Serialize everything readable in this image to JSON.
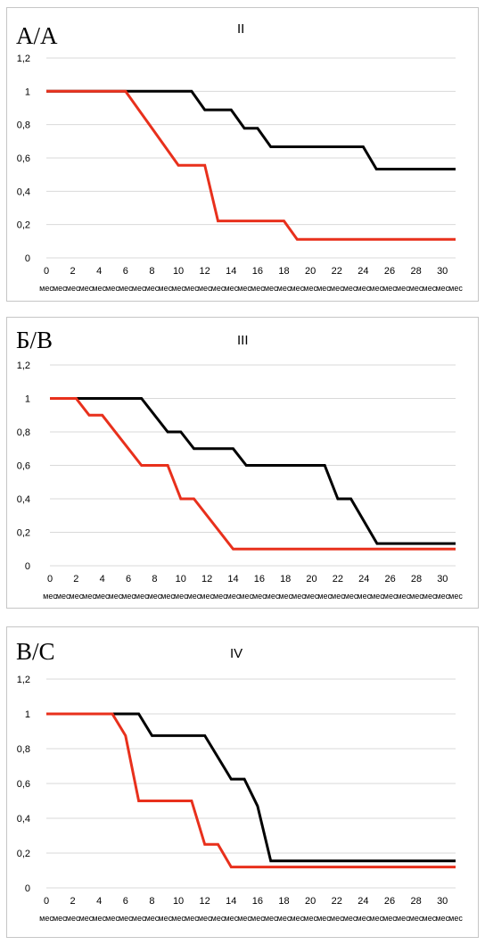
{
  "chart_data": [
    {
      "type": "line",
      "corner_label": "A/A",
      "title": "II",
      "ylim": [
        0,
        1.2
      ],
      "yticks": [
        "0",
        "0,2",
        "0,4",
        "0,6",
        "0,8",
        "1",
        "1,2"
      ],
      "xticks": [
        "0",
        "2",
        "4",
        "6",
        "8",
        "10",
        "12",
        "14",
        "16",
        "18",
        "20",
        "22",
        "24",
        "26",
        "28",
        "30"
      ],
      "xunit": "мес",
      "grid": true,
      "series": [
        {
          "color": "#000000",
          "points": [
            [
              0,
              1
            ],
            [
              11,
              1
            ],
            [
              12,
              0.889
            ],
            [
              14,
              0.889
            ],
            [
              15,
              0.778
            ],
            [
              16,
              0.778
            ],
            [
              17,
              0.667
            ],
            [
              24,
              0.667
            ],
            [
              25,
              0.533
            ],
            [
              31,
              0.533
            ]
          ]
        },
        {
          "color": "#e8301c",
          "points": [
            [
              0,
              1
            ],
            [
              6,
              1
            ],
            [
              8,
              0.778
            ],
            [
              10,
              0.556
            ],
            [
              12,
              0.556
            ],
            [
              13,
              0.222
            ],
            [
              18,
              0.222
            ],
            [
              19,
              0.111
            ],
            [
              31,
              0.111
            ]
          ]
        }
      ]
    },
    {
      "type": "line",
      "corner_label": "Б/В",
      "title": "III",
      "ylim": [
        0,
        1.2
      ],
      "yticks": [
        "0",
        "0,2",
        "0,4",
        "0,6",
        "0,8",
        "1",
        "1,2"
      ],
      "xticks": [
        "0",
        "2",
        "4",
        "6",
        "8",
        "10",
        "12",
        "14",
        "16",
        "18",
        "20",
        "22",
        "24",
        "26",
        "28",
        "30"
      ],
      "xunit": "мес",
      "grid": true,
      "series": [
        {
          "color": "#000000",
          "points": [
            [
              0,
              1
            ],
            [
              7,
              1
            ],
            [
              9,
              0.8
            ],
            [
              10,
              0.8
            ],
            [
              11,
              0.7
            ],
            [
              14,
              0.7
            ],
            [
              15,
              0.6
            ],
            [
              21,
              0.6
            ],
            [
              22,
              0.4
            ],
            [
              23,
              0.4
            ],
            [
              25,
              0.133
            ],
            [
              31,
              0.133
            ]
          ]
        },
        {
          "color": "#e8301c",
          "points": [
            [
              0,
              1
            ],
            [
              2,
              1
            ],
            [
              3,
              0.9
            ],
            [
              4,
              0.9
            ],
            [
              7,
              0.6
            ],
            [
              9,
              0.6
            ],
            [
              10,
              0.4
            ],
            [
              11,
              0.4
            ],
            [
              14,
              0.1
            ],
            [
              31,
              0.1
            ]
          ]
        }
      ]
    },
    {
      "type": "line",
      "corner_label": "B/C",
      "title": "IV",
      "ylim": [
        0,
        1.2
      ],
      "yticks": [
        "0",
        "0,2",
        "0,4",
        "0,6",
        "0,8",
        "1",
        "1,2"
      ],
      "xticks": [
        "0",
        "2",
        "4",
        "6",
        "8",
        "10",
        "12",
        "14",
        "16",
        "18",
        "20",
        "22",
        "24",
        "26",
        "28",
        "30"
      ],
      "xunit": "мес",
      "grid": true,
      "series": [
        {
          "color": "#000000",
          "points": [
            [
              0,
              1
            ],
            [
              7,
              1
            ],
            [
              8,
              0.875
            ],
            [
              12,
              0.875
            ],
            [
              14,
              0.625
            ],
            [
              15,
              0.625
            ],
            [
              16,
              0.47
            ],
            [
              17,
              0.155
            ],
            [
              31,
              0.155
            ]
          ]
        },
        {
          "color": "#e8301c",
          "points": [
            [
              0,
              1
            ],
            [
              5,
              1
            ],
            [
              6,
              0.875
            ],
            [
              7,
              0.5
            ],
            [
              11,
              0.5
            ],
            [
              12,
              0.25
            ],
            [
              13,
              0.25
            ],
            [
              14,
              0.12
            ],
            [
              31,
              0.12
            ]
          ]
        }
      ]
    }
  ]
}
